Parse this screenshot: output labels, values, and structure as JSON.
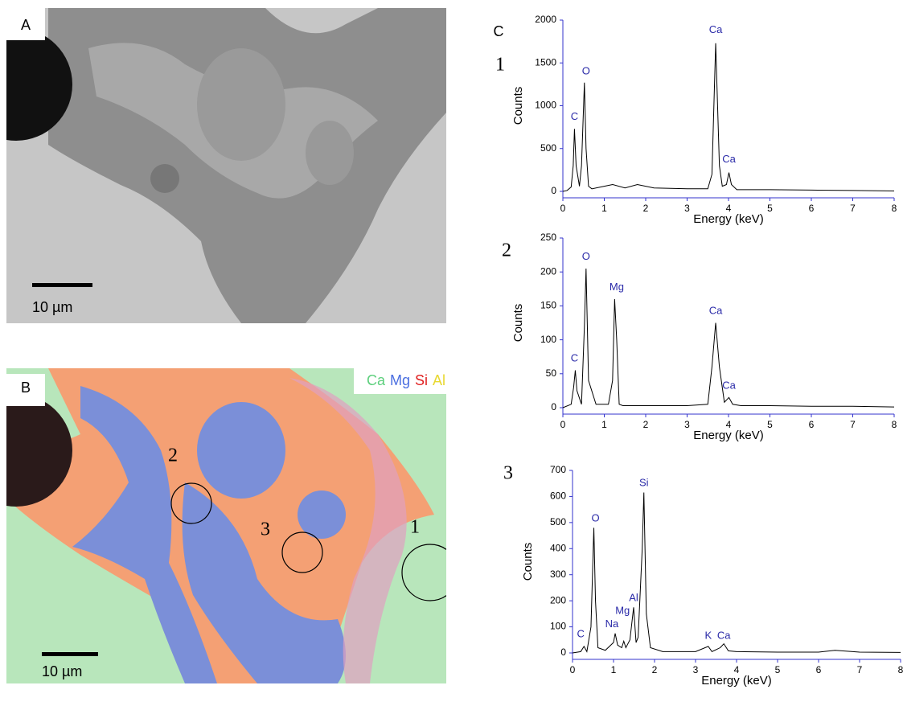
{
  "panels": {
    "a": {
      "label": "A",
      "scale_bar": "10 µm"
    },
    "b": {
      "label": "B",
      "scale_bar": "10 µm",
      "legend": [
        {
          "name": "Ca",
          "color": "#5ccf7c"
        },
        {
          "name": "Mg",
          "color": "#4a6ee0"
        },
        {
          "name": "Si",
          "color": "#e02020"
        },
        {
          "name": "Al",
          "color": "#e8d830"
        }
      ],
      "regions": [
        "2",
        "3",
        "1"
      ]
    },
    "c": {
      "label": "C"
    }
  },
  "chart_data": [
    {
      "type": "line",
      "title": "1",
      "x_label": "Energy (keV)",
      "y_label": "Counts",
      "xlim": [
        0,
        8
      ],
      "xticks": [
        0,
        1,
        2,
        3,
        4,
        5,
        6,
        7,
        8
      ],
      "ylim": [
        0,
        2000
      ],
      "yticks": [
        0,
        500,
        1000,
        1500,
        2000
      ],
      "series": [
        {
          "color": "#000000",
          "x": [
            0,
            0.1,
            0.2,
            0.25,
            0.28,
            0.32,
            0.4,
            0.45,
            0.52,
            0.56,
            0.62,
            0.7,
            1.0,
            1.2,
            1.5,
            1.8,
            2.2,
            3.0,
            3.5,
            3.6,
            3.69,
            3.78,
            3.85,
            3.95,
            4.01,
            4.07,
            4.2,
            5,
            6,
            7,
            8
          ],
          "values": [
            0,
            10,
            50,
            300,
            730,
            300,
            60,
            300,
            1270,
            500,
            60,
            30,
            60,
            80,
            40,
            80,
            40,
            30,
            30,
            200,
            1730,
            300,
            60,
            80,
            220,
            80,
            20,
            20,
            15,
            10,
            5
          ]
        }
      ],
      "annotations": [
        {
          "text": "C",
          "x": 0.28,
          "y": 870
        },
        {
          "text": "O",
          "x": 0.56,
          "y": 1400
        },
        {
          "text": "Ca",
          "x": 3.69,
          "y": 1880
        },
        {
          "text": "Ca",
          "x": 4.01,
          "y": 370
        }
      ]
    },
    {
      "type": "line",
      "title": "2",
      "x_label": "Energy (keV)",
      "y_label": "Counts",
      "xlim": [
        0,
        8
      ],
      "xticks": [
        0,
        1,
        2,
        3,
        4,
        5,
        6,
        7,
        8
      ],
      "ylim": [
        0,
        250
      ],
      "yticks": [
        0,
        50,
        100,
        150,
        200,
        250
      ],
      "series": [
        {
          "color": "#000000",
          "x": [
            0,
            0.2,
            0.26,
            0.3,
            0.34,
            0.45,
            0.52,
            0.56,
            0.62,
            0.8,
            1.1,
            1.2,
            1.25,
            1.3,
            1.36,
            1.45,
            2,
            3,
            3.5,
            3.6,
            3.69,
            3.78,
            3.9,
            4.01,
            4.1,
            4.3,
            5,
            6,
            7,
            8
          ],
          "values": [
            0,
            5,
            30,
            55,
            25,
            5,
            120,
            205,
            40,
            5,
            5,
            40,
            160,
            100,
            5,
            3,
            3,
            3,
            5,
            60,
            125,
            60,
            8,
            15,
            5,
            3,
            3,
            2,
            2,
            1
          ]
        }
      ],
      "annotations": [
        {
          "text": "C",
          "x": 0.28,
          "y": 72
        },
        {
          "text": "O",
          "x": 0.56,
          "y": 222
        },
        {
          "text": "Mg",
          "x": 1.3,
          "y": 177
        },
        {
          "text": "Ca",
          "x": 3.69,
          "y": 142
        },
        {
          "text": "Ca",
          "x": 4.01,
          "y": 32
        }
      ]
    },
    {
      "type": "line",
      "title": "3",
      "x_label": "Energy (keV)",
      "y_label": "Counts",
      "xlim": [
        0,
        8
      ],
      "xticks": [
        0,
        1,
        2,
        3,
        4,
        5,
        6,
        7,
        8
      ],
      "ylim": [
        0,
        700
      ],
      "yticks": [
        0,
        100,
        200,
        300,
        400,
        500,
        600,
        700
      ],
      "series": [
        {
          "color": "#000000",
          "x": [
            0,
            0.2,
            0.28,
            0.35,
            0.45,
            0.52,
            0.56,
            0.62,
            0.8,
            1.0,
            1.04,
            1.1,
            1.2,
            1.25,
            1.3,
            1.4,
            1.49,
            1.55,
            1.6,
            1.7,
            1.74,
            1.8,
            1.9,
            2.2,
            3,
            3.31,
            3.4,
            3.6,
            3.69,
            3.8,
            4,
            5,
            6,
            6.4,
            7,
            8
          ],
          "values": [
            0,
            5,
            25,
            5,
            100,
            480,
            200,
            20,
            10,
            40,
            75,
            30,
            20,
            45,
            20,
            50,
            175,
            40,
            60,
            400,
            615,
            150,
            20,
            5,
            5,
            25,
            5,
            20,
            35,
            8,
            5,
            3,
            3,
            10,
            3,
            2
          ]
        }
      ],
      "annotations": [
        {
          "text": "C",
          "x": 0.2,
          "y": 70
        },
        {
          "text": "O",
          "x": 0.56,
          "y": 515
        },
        {
          "text": "Na",
          "x": 0.96,
          "y": 110
        },
        {
          "text": "Mg",
          "x": 1.22,
          "y": 160
        },
        {
          "text": "Al",
          "x": 1.49,
          "y": 210
        },
        {
          "text": "Si",
          "x": 1.74,
          "y": 650
        },
        {
          "text": "K",
          "x": 3.31,
          "y": 65
        },
        {
          "text": "Ca",
          "x": 3.69,
          "y": 65
        }
      ]
    }
  ]
}
